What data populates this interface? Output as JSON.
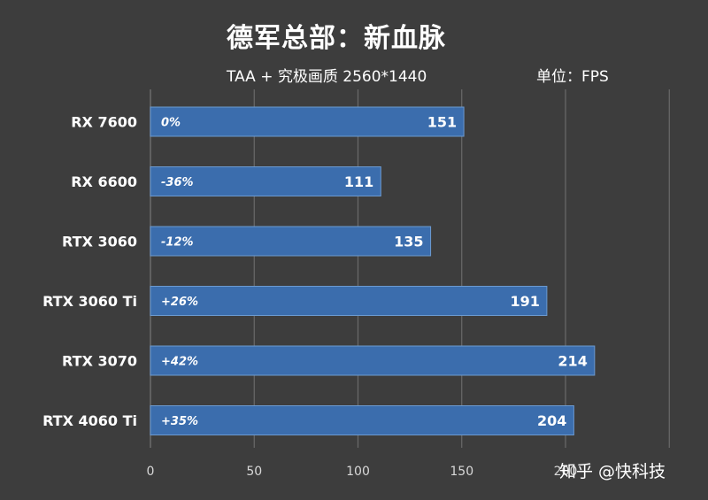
{
  "title": "德军总部：新血脉",
  "subtitle": "TAA + 究极画质 2560*1440",
  "unit": "单位：FPS",
  "watermark": "知乎 @快科技",
  "colors": {
    "background": "#3d3d3d",
    "bar": "#3b6dad",
    "bar_edge": "#6c9ad0",
    "grid": "#6a6a6a",
    "text": "#ffffff",
    "tick": "#d8d8d8"
  },
  "chart_data": {
    "type": "bar",
    "orientation": "horizontal",
    "categories": [
      "RX 7600",
      "RX 6600",
      "RTX 3060",
      "RTX 3060 Ti",
      "RTX 3070",
      "RTX 4060 Ti"
    ],
    "values": [
      151,
      111,
      135,
      191,
      214,
      204
    ],
    "value_labels": [
      "151",
      "111",
      "135",
      "191",
      "214",
      "204"
    ],
    "percent_labels": [
      "0%",
      "-36%",
      "-12%",
      "+26%",
      "+42%",
      "+35%"
    ],
    "xlim": [
      0,
      250
    ],
    "xticks": [
      "0",
      "50",
      "100",
      "150",
      "200"
    ],
    "grid": true
  }
}
